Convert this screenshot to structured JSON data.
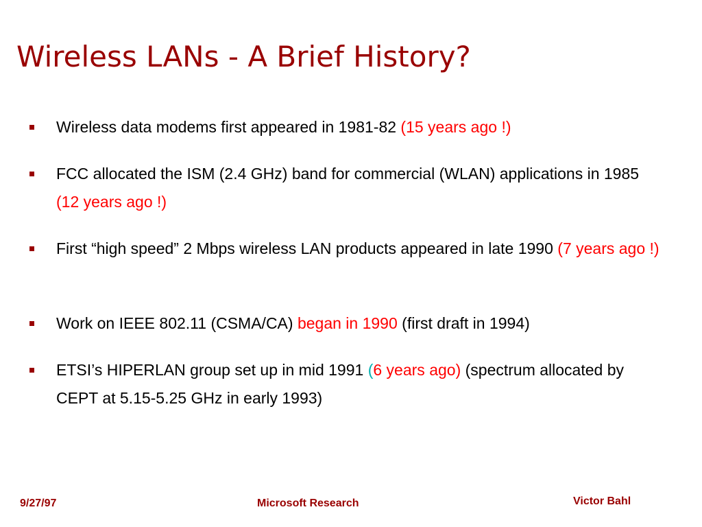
{
  "slide": {
    "title": "Wireless LANs - A Brief History?",
    "bullets": [
      {
        "segments": [
          {
            "text": "Wireless data modems first appeared in 1981-82 ",
            "style": "normal"
          },
          {
            "text": "(15 years ago !)",
            "style": "red"
          }
        ]
      },
      {
        "segments": [
          {
            "text": "FCC allocated the ISM (2.4 GHz) band for commercial (WLAN) applications in 1985 ",
            "style": "normal"
          },
          {
            "text": "(12 years ago !)",
            "style": "red"
          }
        ]
      },
      {
        "segments": [
          {
            "text": "First “high speed” 2 Mbps wireless LAN products appeared in late 1990 ",
            "style": "normal"
          },
          {
            "text": "(7 years ago !)",
            "style": "red"
          }
        ]
      },
      {
        "segments": [
          {
            "text": "Work on IEEE 802.11 (CSMA/CA) ",
            "style": "normal"
          },
          {
            "text": "began in 1990",
            "style": "red"
          },
          {
            "text": " (first draft in 1994)",
            "style": "normal"
          }
        ]
      },
      {
        "segments": [
          {
            "text": "ETSI’s HIPERLAN group set up in mid 1991 ",
            "style": "normal"
          },
          {
            "text": "(",
            "style": "teal"
          },
          {
            "text": "6 years ago)",
            "style": "red"
          },
          {
            "text": " (spectrum allocated by CEPT at 5.15-5.25 GHz in early 1993)",
            "style": "normal"
          }
        ]
      }
    ]
  },
  "footer": {
    "date": "9/27/97",
    "organization": "Microsoft Research",
    "author": "Victor Bahl"
  },
  "colors": {
    "title": "#990000",
    "bullet_marker": "#990000",
    "highlight_red": "#ff0000",
    "highlight_teal": "#00b0b0",
    "footer": "#990000",
    "body_text": "#000000"
  }
}
